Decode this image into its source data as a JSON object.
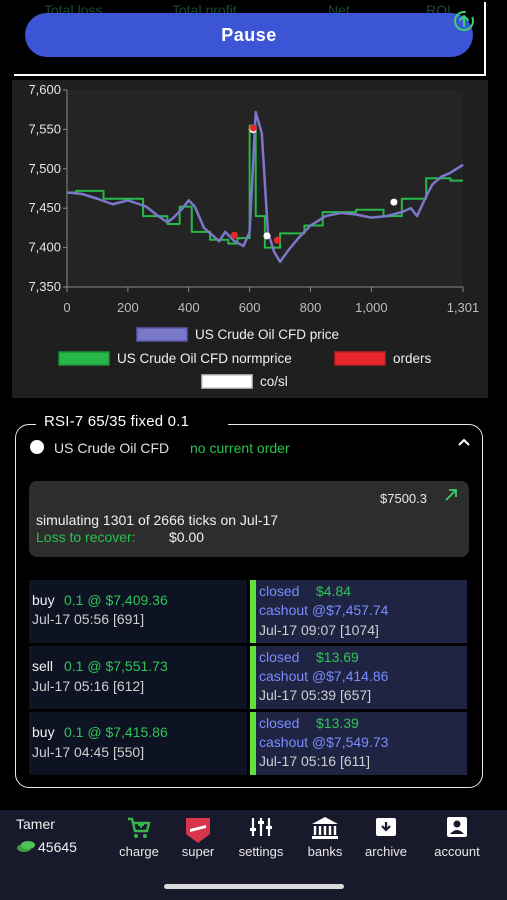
{
  "summary_labels": [
    "Total loss",
    "Total profit",
    "Net",
    "ROI"
  ],
  "pause_label": "Pause",
  "chart_data": {
    "type": "line",
    "x_ticks": [
      "0",
      "200",
      "400",
      "600",
      "800",
      "1,000",
      "1,301"
    ],
    "y_ticks": [
      "7,350",
      "7,400",
      "7,450",
      "7,500",
      "7,550",
      "7,600"
    ],
    "xlim": [
      0,
      1301
    ],
    "ylim": [
      7350,
      7600
    ],
    "series": [
      {
        "name": "US Crude Oil CFD price",
        "color": "#7a78c9",
        "x": [
          0,
          50,
          100,
          150,
          200,
          260,
          300,
          330,
          350,
          380,
          400,
          420,
          450,
          480,
          500,
          520,
          550,
          580,
          600,
          620,
          640,
          660,
          680,
          700,
          730,
          760,
          800,
          850,
          900,
          950,
          1000,
          1050,
          1100,
          1130,
          1150,
          1180,
          1200,
          1230,
          1260,
          1301
        ],
        "y": [
          7470,
          7468,
          7462,
          7455,
          7460,
          7452,
          7440,
          7432,
          7438,
          7450,
          7460,
          7452,
          7425,
          7415,
          7408,
          7420,
          7408,
          7402,
          7420,
          7572,
          7545,
          7420,
          7395,
          7382,
          7398,
          7412,
          7428,
          7440,
          7444,
          7442,
          7438,
          7440,
          7445,
          7450,
          7440,
          7465,
          7480,
          7490,
          7495,
          7505
        ]
      },
      {
        "name": "US Crude Oil CFD normprice",
        "color": "#27b84a",
        "x": [
          0,
          30,
          30,
          120,
          120,
          250,
          250,
          330,
          330,
          370,
          370,
          410,
          410,
          470,
          470,
          530,
          530,
          560,
          560,
          600,
          600,
          620,
          620,
          650,
          650,
          700,
          700,
          780,
          780,
          840,
          840,
          950,
          950,
          1040,
          1040,
          1100,
          1100,
          1180,
          1180,
          1260,
          1260,
          1301
        ],
        "y": [
          7470,
          7470,
          7472,
          7472,
          7462,
          7462,
          7440,
          7440,
          7430,
          7430,
          7452,
          7452,
          7420,
          7420,
          7410,
          7410,
          7405,
          7405,
          7412,
          7412,
          7555,
          7555,
          7440,
          7440,
          7400,
          7400,
          7418,
          7418,
          7428,
          7428,
          7445,
          7445,
          7448,
          7448,
          7440,
          7440,
          7462,
          7462,
          7488,
          7488,
          7485,
          7485
        ]
      }
    ],
    "orders": [
      [
        550,
        7415.86
      ],
      [
        612,
        7551.73
      ],
      [
        691,
        7409.36
      ]
    ],
    "cosl": [
      [
        657,
        7414.86
      ],
      [
        1074,
        7457.74
      ],
      [
        611,
        7549.73
      ]
    ],
    "legend": {
      "price": "US Crude Oil CFD price",
      "normprice": "US Crude Oil CFD normprice",
      "orders": "orders",
      "cosl": "co/sl"
    }
  },
  "strategy": {
    "title": "RSI-7 65/35 fixed 0.1",
    "instrument": "US Crude Oil CFD",
    "order_status": "no current order",
    "balance": "$7500.3",
    "sim_text": "simulating 1301 of 2666 ticks on Jul-17",
    "loss_label": "Loss to recover:",
    "loss_value": "$0.00"
  },
  "trades": [
    {
      "side": "buy",
      "qty_price": "0.1 @ $7,409.36",
      "open_time": "Jul-17 05:56 [691]",
      "status": "closed",
      "profit": "$4.84",
      "cashout": "cashout @$7,457.74",
      "close_time": "Jul-17 09:07 [1074]"
    },
    {
      "side": "sell",
      "qty_price": "0.1 @ $7,551.73",
      "open_time": "Jul-17 05:16 [612]",
      "status": "closed",
      "profit": "$13.69",
      "cashout": "cashout @$7,414.86",
      "close_time": "Jul-17 05:39 [657]"
    },
    {
      "side": "buy",
      "qty_price": "0.1 @ $7,415.86",
      "open_time": "Jul-17 04:45 [550]",
      "status": "closed",
      "profit": "$13.39",
      "cashout": "cashout @$7,549.73",
      "close_time": "Jul-17 05:16 [611]"
    }
  ],
  "user": {
    "name": "Tamer",
    "coins": "45645"
  },
  "nav": [
    {
      "label": "charge",
      "icon": "cart-icon",
      "color": "#3ab54a"
    },
    {
      "label": "super",
      "icon": "super-icon",
      "color": "#d8354a"
    },
    {
      "label": "settings",
      "icon": "sliders-icon",
      "color": "#ffffff"
    },
    {
      "label": "banks",
      "icon": "bank-icon",
      "color": "#ffffff"
    },
    {
      "label": "archive",
      "icon": "archive-icon",
      "color": "#ffffff"
    },
    {
      "label": "account",
      "icon": "account-icon",
      "color": "#ffffff"
    }
  ]
}
